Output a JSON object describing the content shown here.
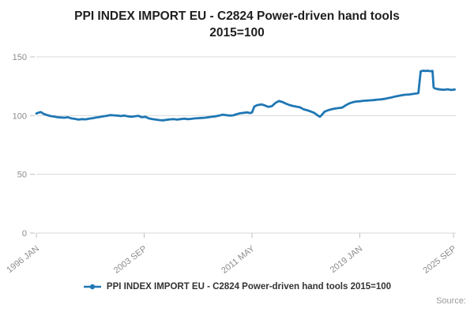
{
  "header": {
    "title_line1": "PPI INDEX IMPORT EU - C2824 Power-driven hand tools",
    "title_line2": "2015=100"
  },
  "legend": {
    "label": "PPI INDEX IMPORT EU - C2824 Power-driven hand tools 2015=100"
  },
  "footer": {
    "source_label": "Source:"
  },
  "colors": {
    "line": "#1f77b4",
    "grid": "#d9d9d9",
    "tick": "#c0c0c0",
    "tick_text": "#8c8c8c",
    "title_text": "#1f1f1f"
  },
  "chart_data": {
    "type": "line",
    "title": "PPI INDEX IMPORT EU - C2824 Power-driven hand tools 2015=100",
    "xlabel": "",
    "ylabel": "",
    "grid": true,
    "legend_position": "bottom",
    "ylim": [
      0,
      150
    ],
    "yticks": [
      0,
      50,
      100,
      150
    ],
    "xlim": [
      1996.0,
      2025.83
    ],
    "xticks": [
      {
        "pos": 1996.0,
        "label": "1996 JAN"
      },
      {
        "pos": 2003.667,
        "label": "2003 SEP"
      },
      {
        "pos": 2011.333,
        "label": "2011 MAY"
      },
      {
        "pos": 2019.0,
        "label": "2019 JAN"
      },
      {
        "pos": 2025.667,
        "label": "2025 SEP"
      }
    ],
    "series": [
      {
        "name": "PPI INDEX IMPORT EU - C2824 Power-driven hand tools 2015=100",
        "points": [
          [
            1996.0,
            101.8
          ],
          [
            1996.17,
            102.6
          ],
          [
            1996.33,
            103.0
          ],
          [
            1996.5,
            101.6
          ],
          [
            1996.67,
            100.8
          ],
          [
            1996.83,
            100.2
          ],
          [
            1997.0,
            99.6
          ],
          [
            1997.25,
            99.2
          ],
          [
            1997.5,
            98.6
          ],
          [
            1997.75,
            98.4
          ],
          [
            1998.0,
            98.2
          ],
          [
            1998.25,
            98.6
          ],
          [
            1998.5,
            97.6
          ],
          [
            1998.75,
            97.2
          ],
          [
            1999.0,
            96.6
          ],
          [
            1999.25,
            97.0
          ],
          [
            1999.5,
            96.8
          ],
          [
            1999.75,
            97.4
          ],
          [
            2000.0,
            97.8
          ],
          [
            2000.25,
            98.4
          ],
          [
            2000.5,
            98.8
          ],
          [
            2000.75,
            99.4
          ],
          [
            2001.0,
            99.8
          ],
          [
            2001.25,
            100.4
          ],
          [
            2001.5,
            100.2
          ],
          [
            2001.75,
            100.0
          ],
          [
            2002.0,
            99.6
          ],
          [
            2002.25,
            100.0
          ],
          [
            2002.5,
            99.4
          ],
          [
            2002.75,
            99.0
          ],
          [
            2003.0,
            99.4
          ],
          [
            2003.25,
            99.8
          ],
          [
            2003.5,
            98.6
          ],
          [
            2003.75,
            99.0
          ],
          [
            2004.0,
            97.6
          ],
          [
            2004.25,
            97.0
          ],
          [
            2004.5,
            96.6
          ],
          [
            2004.75,
            96.2
          ],
          [
            2005.0,
            96.0
          ],
          [
            2005.25,
            96.4
          ],
          [
            2005.5,
            96.8
          ],
          [
            2005.75,
            97.0
          ],
          [
            2006.0,
            96.6
          ],
          [
            2006.25,
            97.0
          ],
          [
            2006.5,
            97.4
          ],
          [
            2006.75,
            97.0
          ],
          [
            2007.0,
            97.2
          ],
          [
            2007.25,
            97.6
          ],
          [
            2007.5,
            97.8
          ],
          [
            2007.75,
            98.0
          ],
          [
            2008.0,
            98.2
          ],
          [
            2008.25,
            98.6
          ],
          [
            2008.5,
            99.0
          ],
          [
            2008.75,
            99.4
          ],
          [
            2009.0,
            100.0
          ],
          [
            2009.25,
            100.8
          ],
          [
            2009.5,
            100.4
          ],
          [
            2009.75,
            100.0
          ],
          [
            2010.0,
            100.2
          ],
          [
            2010.25,
            101.2
          ],
          [
            2010.5,
            102.0
          ],
          [
            2010.75,
            102.4
          ],
          [
            2011.0,
            102.8
          ],
          [
            2011.17,
            102.2
          ],
          [
            2011.33,
            102.6
          ],
          [
            2011.5,
            107.6
          ],
          [
            2011.67,
            108.8
          ],
          [
            2011.83,
            109.2
          ],
          [
            2012.0,
            109.6
          ],
          [
            2012.25,
            108.6
          ],
          [
            2012.5,
            107.4
          ],
          [
            2012.75,
            108.0
          ],
          [
            2013.0,
            110.8
          ],
          [
            2013.25,
            112.4
          ],
          [
            2013.5,
            111.6
          ],
          [
            2013.75,
            110.2
          ],
          [
            2014.0,
            109.0
          ],
          [
            2014.25,
            108.2
          ],
          [
            2014.5,
            107.6
          ],
          [
            2014.75,
            107.0
          ],
          [
            2015.0,
            105.4
          ],
          [
            2015.25,
            104.6
          ],
          [
            2015.5,
            103.6
          ],
          [
            2015.75,
            102.4
          ],
          [
            2016.0,
            100.2
          ],
          [
            2016.17,
            99.0
          ],
          [
            2016.33,
            101.0
          ],
          [
            2016.5,
            103.4
          ],
          [
            2016.75,
            104.6
          ],
          [
            2017.0,
            105.4
          ],
          [
            2017.25,
            106.0
          ],
          [
            2017.5,
            106.4
          ],
          [
            2017.75,
            106.8
          ],
          [
            2018.0,
            108.8
          ],
          [
            2018.25,
            110.4
          ],
          [
            2018.5,
            111.4
          ],
          [
            2018.75,
            112.0
          ],
          [
            2019.0,
            112.2
          ],
          [
            2019.25,
            112.6
          ],
          [
            2019.5,
            112.8
          ],
          [
            2019.75,
            113.0
          ],
          [
            2020.0,
            113.2
          ],
          [
            2020.25,
            113.6
          ],
          [
            2020.5,
            113.8
          ],
          [
            2020.75,
            114.2
          ],
          [
            2021.0,
            114.8
          ],
          [
            2021.25,
            115.4
          ],
          [
            2021.5,
            116.2
          ],
          [
            2021.75,
            116.8
          ],
          [
            2022.0,
            117.4
          ],
          [
            2022.25,
            117.8
          ],
          [
            2022.5,
            118.0
          ],
          [
            2022.75,
            118.4
          ],
          [
            2023.0,
            118.8
          ],
          [
            2023.17,
            119.2
          ],
          [
            2023.33,
            137.6
          ],
          [
            2023.5,
            138.2
          ],
          [
            2023.67,
            138.0
          ],
          [
            2023.83,
            138.2
          ],
          [
            2024.0,
            137.8
          ],
          [
            2024.17,
            138.0
          ],
          [
            2024.25,
            124.0
          ],
          [
            2024.33,
            123.2
          ],
          [
            2024.5,
            122.6
          ],
          [
            2024.75,
            122.2
          ],
          [
            2025.0,
            122.0
          ],
          [
            2025.25,
            122.4
          ],
          [
            2025.5,
            121.8
          ],
          [
            2025.75,
            122.2
          ]
        ]
      }
    ]
  }
}
